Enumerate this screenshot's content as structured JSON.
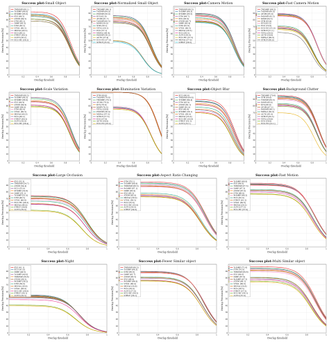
{
  "chart_data": [
    {
      "type": "line",
      "title": "Success plot-Small Object",
      "ylabel": "Overlap Precision [%]",
      "xlabel": "Overlap threshold",
      "xlim": [
        0,
        1
      ],
      "ylim": [
        0,
        100
      ],
      "xticks": [
        "0",
        "0.2",
        "0.4",
        "0.6",
        "0.8",
        "1"
      ],
      "yticks": [
        "0",
        "10",
        "20",
        "30",
        "40",
        "50",
        "60",
        "70",
        "80",
        "90"
      ],
      "series": [
        {
          "name": "TMDiMP [68.1]"
        },
        {
          "name": "TrDiMP [66.0]"
        },
        {
          "name": "PrDiMP [65.0]"
        },
        {
          "name": "KYS [64.5]"
        },
        {
          "name": "ATOM [64.5]"
        },
        {
          "name": "STM [63.2]"
        },
        {
          "name": "DiMP [63.3]"
        },
        {
          "name": "STM [63.2]"
        },
        {
          "name": "VITAL [60.2]"
        },
        {
          "name": "MDNet [60.2]"
        },
        {
          "name": "ECO [60.2]"
        },
        {
          "name": "STRCF [60.2]"
        },
        {
          "name": "AUTO [58.2]"
        },
        {
          "name": "ECO-HC [58.2]"
        }
      ]
    },
    {
      "type": "line",
      "title": "Success plot-Normalized Small Object",
      "ylabel": "Overlap Precision [%]",
      "xlabel": "Overlap threshold",
      "xlim": [
        0,
        1
      ],
      "ylim": [
        0,
        100
      ],
      "xticks": [
        "0",
        "0.2",
        "0.4",
        "0.6",
        "0.8",
        "1"
      ],
      "yticks": [
        "0",
        "10",
        "20",
        "30",
        "40",
        "50",
        "60",
        "70",
        "80",
        "90"
      ],
      "series": [
        {
          "name": "TMDiMP [64.1]"
        },
        {
          "name": "TrDiMP [64.0]"
        },
        {
          "name": "PrDiMP [63.0]"
        },
        {
          "name": "KYS [62.0]"
        },
        {
          "name": "ATOM [61.7]"
        },
        {
          "name": "TrDiMP [60.5]"
        },
        {
          "name": "DiMP [59.0]"
        },
        {
          "name": "STM [58.1]"
        },
        {
          "name": "VITAL [58.1]"
        },
        {
          "name": "ECO [57.1]"
        },
        {
          "name": "MDNet [56.4]"
        },
        {
          "name": "PrDiMP [56.2]"
        },
        {
          "name": "AUTO [37.4]"
        },
        {
          "name": "ECO-HC [37.0]"
        },
        {
          "name": "STRCF [35.8]"
        }
      ]
    },
    {
      "type": "line",
      "title": "Success plot-Camera Motion",
      "ylabel": "Overlap Precision [%]",
      "xlabel": "Overlap threshold",
      "xlim": [
        0,
        1
      ],
      "ylim": [
        0,
        100
      ],
      "xticks": [
        "0",
        "0.2",
        "0.4",
        "0.6",
        "0.8",
        "1"
      ],
      "yticks": [
        "0",
        "10",
        "20",
        "30",
        "40",
        "50",
        "60",
        "70",
        "80",
        "90"
      ],
      "series": [
        {
          "name": "TMDiMP [66.5]"
        },
        {
          "name": "TrDiMP [66.3]"
        },
        {
          "name": "PrDiMP [65.5]"
        },
        {
          "name": "STM [64.7]"
        },
        {
          "name": "KYS [63.9]"
        },
        {
          "name": "ATOM [63.7]"
        },
        {
          "name": "DiMP [63.4]"
        },
        {
          "name": "STM [61.8]"
        },
        {
          "name": "VITAL [60.5]"
        },
        {
          "name": "MDNet [58.5]"
        },
        {
          "name": "ECO [58.5]"
        },
        {
          "name": "AUTO [58.0]"
        },
        {
          "name": "ECO-HC [57.5]"
        },
        {
          "name": "MDNet [57.0]"
        },
        {
          "name": "STRCF [56.5]"
        }
      ]
    },
    {
      "type": "line",
      "title": "Success plot-Fast Camera Motion",
      "ylabel": "Overlap Precision [%]",
      "xlabel": "Overlap threshold",
      "xlim": [
        0,
        1
      ],
      "ylim": [
        0,
        100
      ],
      "xticks": [
        "0",
        "0.2",
        "0.4",
        "0.6",
        "0.8",
        "1"
      ],
      "yticks": [
        "0",
        "10",
        "20",
        "30",
        "40",
        "50",
        "60",
        "70",
        "80",
        "90"
      ],
      "series": [
        {
          "name": "TMDiMP [66.2]"
        },
        {
          "name": "TrDiMP [66.0]"
        },
        {
          "name": "ATOM [65.0]"
        },
        {
          "name": "PrDiMP [65.5]"
        },
        {
          "name": "DiMP [64.5]"
        },
        {
          "name": "STM [63.9]"
        },
        {
          "name": "KYS [63.5]"
        },
        {
          "name": "ECO [53.0]"
        },
        {
          "name": "ECO-HC [52.0]"
        },
        {
          "name": "STRCF [51.1]"
        },
        {
          "name": "VITAL [50.5]"
        },
        {
          "name": "AUTO [50.0]"
        },
        {
          "name": "MDNet [49.0]"
        },
        {
          "name": "STRCF [46.0]"
        }
      ]
    },
    {
      "type": "line",
      "title": "Success plot-Scale Variation",
      "ylabel": "Overlap Precision [%]",
      "xlabel": "Overlap threshold",
      "xlim": [
        0,
        1
      ],
      "ylim": [
        0,
        100
      ],
      "xticks": [
        "0",
        "0.2",
        "0.4",
        "0.6",
        "0.8",
        "1"
      ],
      "yticks": [
        "0",
        "10",
        "20",
        "30",
        "40",
        "50",
        "60",
        "70",
        "80",
        "90"
      ],
      "series": [
        {
          "name": "TMDiMP [68.5]"
        },
        {
          "name": "TrDiMP [68.3]"
        },
        {
          "name": "PrDiMP [66.9]"
        },
        {
          "name": "KYS [64.9]"
        },
        {
          "name": "ATOM [64.9]"
        },
        {
          "name": "DiMP [64.0]"
        },
        {
          "name": "STM [63.4]"
        },
        {
          "name": "VITAL [60.3]"
        },
        {
          "name": "MDNet [60.3]"
        },
        {
          "name": "ECO [60.2]"
        },
        {
          "name": "STRCF [60.2]"
        },
        {
          "name": "AUTO [59.0]"
        },
        {
          "name": "ECO-HC [58.4]"
        }
      ]
    },
    {
      "type": "line",
      "title": "Success plot-Illumination Variation",
      "ylabel": "Overlap Precision [%]",
      "xlabel": "Overlap threshold",
      "xlim": [
        0,
        1
      ],
      "ylim": [
        0,
        100
      ],
      "xticks": [
        "0",
        "0.2",
        "0.4",
        "0.6",
        "0.8",
        "1"
      ],
      "yticks": [
        "0",
        "10",
        "20",
        "30",
        "40",
        "50",
        "60",
        "70",
        "80",
        "90"
      ],
      "series": [
        {
          "name": "STM [80.8]"
        },
        {
          "name": "TrDiMP [79.8]"
        },
        {
          "name": "TMDiMP [79.1]"
        },
        {
          "name": "ATOM [79.0]"
        },
        {
          "name": "KYS [78.0]"
        },
        {
          "name": "DiMP [76.3]"
        },
        {
          "name": "VITAL [58.8]"
        },
        {
          "name": "PrDiMP [58.0]"
        },
        {
          "name": "MDNet [57.5]"
        },
        {
          "name": "STRCF [57.5]"
        },
        {
          "name": "ECO [57.0]"
        },
        {
          "name": "AUTO [56.0]"
        },
        {
          "name": "ECO-HC [56.0]"
        }
      ]
    },
    {
      "type": "line",
      "title": "Success plot-Object Blur",
      "ylabel": "Overlap Precision [%]",
      "xlabel": "Overlap threshold",
      "xlim": [
        0,
        1
      ],
      "ylim": [
        0,
        100
      ],
      "xticks": [
        "0",
        "0.2",
        "0.4",
        "0.6",
        "0.8",
        "1"
      ],
      "yticks": [
        "0",
        "10",
        "20",
        "30",
        "40",
        "50",
        "60",
        "70",
        "80",
        "90"
      ],
      "series": [
        {
          "name": "ECO [66.6]"
        },
        {
          "name": "TMDiMP [64.8]"
        },
        {
          "name": "TrDiMP [64.4]"
        },
        {
          "name": "STM [63.9]"
        },
        {
          "name": "ATOM [62.1]"
        },
        {
          "name": "DiMP [61.0]"
        },
        {
          "name": "KYS [60.4]"
        },
        {
          "name": "PrDiMP [58.1]"
        },
        {
          "name": "VITAL [56.0]"
        },
        {
          "name": "MDNet [55.0]"
        },
        {
          "name": "ECO-HC [53.0]"
        },
        {
          "name": "STRCF [52.1]"
        },
        {
          "name": "AUTO [52.1]"
        }
      ]
    },
    {
      "type": "line",
      "title": "Success plot-Background Clutter",
      "ylabel": "Overlap Precision [%]",
      "xlabel": "Overlap threshold",
      "xlim": [
        0,
        1
      ],
      "ylim": [
        0,
        100
      ],
      "xticks": [
        "0",
        "0.2",
        "0.4",
        "0.6",
        "0.8",
        "1"
      ],
      "yticks": [
        "0",
        "10",
        "20",
        "30",
        "40",
        "50",
        "60",
        "70",
        "80",
        "90"
      ],
      "series": [
        {
          "name": "TMDiMP [70.6]"
        },
        {
          "name": "STM [69.8]"
        },
        {
          "name": "TrDiMP [69.3]"
        },
        {
          "name": "DiMP [68.6]"
        },
        {
          "name": "KYS [68.0]"
        },
        {
          "name": "ATOM [67.1]"
        },
        {
          "name": "PrDiMP [66.1]"
        },
        {
          "name": "MDNet [62.0]"
        },
        {
          "name": "AUTO [61.0]"
        },
        {
          "name": "STRCF [60.5]"
        },
        {
          "name": "VITAL [59.8]"
        },
        {
          "name": "ECO [59.0]"
        },
        {
          "name": "ECO-HC [52.1]"
        }
      ]
    },
    {
      "type": "line",
      "title": "Success plot-Large Occlusion",
      "ylabel": "Overlap Precision [%]",
      "xlabel": "Overlap threshold",
      "xlim": [
        0,
        1
      ],
      "ylim": [
        0,
        100
      ],
      "xticks": [
        "0",
        "0.2",
        "0.4",
        "0.6",
        "0.8",
        "1"
      ],
      "yticks": [
        "0",
        "10",
        "20",
        "30",
        "40",
        "50",
        "60",
        "70",
        "80",
        "90"
      ],
      "series": [
        {
          "name": "KYS [55.3]"
        },
        {
          "name": "TMDiMP [54.7]"
        },
        {
          "name": "ATOM [54.4]"
        },
        {
          "name": "ECO [53.0]"
        },
        {
          "name": "PrDiMP [52.8]"
        },
        {
          "name": "DiMP [52.1]"
        },
        {
          "name": "TrDiMP [51.0]"
        },
        {
          "name": "STM [49.5]"
        },
        {
          "name": "VITAL [46.8]"
        },
        {
          "name": "ECO-HC [46.3]"
        },
        {
          "name": "MDNet [46.0]"
        },
        {
          "name": "STRCF [39.8]"
        },
        {
          "name": "AUTO [39.0]"
        }
      ]
    },
    {
      "type": "line",
      "title": "Success plot-Aspect Ratio Changing",
      "ylabel": "Overlap Precision [%]",
      "xlabel": "Overlap threshold",
      "xlim": [
        0,
        1
      ],
      "ylim": [
        0,
        100
      ],
      "xticks": [
        "0",
        "0.2",
        "0.4",
        "0.6",
        "0.8",
        "1"
      ],
      "yticks": [
        "0",
        "10",
        "20",
        "30",
        "40",
        "50",
        "60",
        "70",
        "80",
        "90"
      ],
      "series": [
        {
          "name": "STM [70.1]"
        },
        {
          "name": "TrDiMP [68.9]"
        },
        {
          "name": "TMDiMP [68.5]"
        },
        {
          "name": "PrDiMP [67.1]"
        },
        {
          "name": "DiMP [65.9]"
        },
        {
          "name": "KYS [65.5]"
        },
        {
          "name": "ATOM [65.0]"
        },
        {
          "name": "MDNet [58.0]"
        },
        {
          "name": "VITAL [56.5]"
        },
        {
          "name": "ECO [55.6]"
        },
        {
          "name": "ECO-HC [55.0]"
        },
        {
          "name": "AUTO [54.3]"
        },
        {
          "name": "STRCF [54.0]"
        }
      ]
    },
    {
      "type": "line",
      "title": "Success plot-Fast Motion",
      "ylabel": "Overlap Precision [%]",
      "xlabel": "Overlap threshold",
      "xlim": [
        0,
        1
      ],
      "ylim": [
        0,
        100
      ],
      "xticks": [
        "0",
        "0.2",
        "0.4",
        "0.6",
        "0.8",
        "1"
      ],
      "yticks": [
        "0",
        "10",
        "20",
        "30",
        "40",
        "50",
        "60",
        "70",
        "80",
        "90"
      ],
      "series": [
        {
          "name": "TrDiMP [68.8]"
        },
        {
          "name": "KYS [68.0]"
        },
        {
          "name": "TMDiMP [67.5]"
        },
        {
          "name": "DiMP [67.3]"
        },
        {
          "name": "ATOM [67.0]"
        },
        {
          "name": "STM [66.8]"
        },
        {
          "name": "PrDiMP [66.5]"
        },
        {
          "name": "ECO [62.0]"
        },
        {
          "name": "STRCF [61.2]"
        },
        {
          "name": "VITAL [60.6]"
        },
        {
          "name": "MDNet [59.2]"
        },
        {
          "name": "AUTO [57.5]"
        },
        {
          "name": "ECO-HC [57.0]"
        }
      ]
    },
    {
      "type": "line",
      "title": "Success plot-Night",
      "ylabel": "Overlap Precision [%]",
      "xlabel": "Overlap threshold",
      "xlim": [
        0,
        1
      ],
      "ylim": [
        0,
        100
      ],
      "xticks": [
        "0",
        "0.2",
        "0.4",
        "0.6",
        "0.8",
        "1"
      ],
      "yticks": [
        "0",
        "10",
        "20",
        "30",
        "40",
        "50",
        "60",
        "70",
        "80",
        "90"
      ],
      "series": [
        {
          "name": "KYS [41.1]"
        },
        {
          "name": "ECO [41.0]"
        },
        {
          "name": "DiMP [40.5]"
        },
        {
          "name": "TrDiMP [40.0]"
        },
        {
          "name": "TMDiMP [39.8]"
        },
        {
          "name": "ATOM [39.5]"
        },
        {
          "name": "PrDiMP [39.2]"
        },
        {
          "name": "STM [39.0]"
        },
        {
          "name": "MDNet [38.6]"
        },
        {
          "name": "VITAL [38.0]"
        },
        {
          "name": "ECO-HC [36.0]"
        },
        {
          "name": "STRCF [30.1]"
        },
        {
          "name": "AUTO [29.3]"
        }
      ]
    },
    {
      "type": "line",
      "title": "Success plot-Fewer Similar object",
      "ylabel": "Overlap Precision [%]",
      "xlabel": "Overlap threshold",
      "xlim": [
        0,
        1
      ],
      "ylim": [
        0,
        100
      ],
      "xticks": [
        "0",
        "0.2",
        "0.4",
        "0.6",
        "0.8",
        "1"
      ],
      "yticks": [
        "0",
        "10",
        "20",
        "30",
        "40",
        "50",
        "60",
        "70",
        "80",
        "90"
      ],
      "series": [
        {
          "name": "TMDiMP [66.5]"
        },
        {
          "name": "TrDiMP [66.3]"
        },
        {
          "name": "STM [65.8]"
        },
        {
          "name": "DiMP [65.7]"
        },
        {
          "name": "ATOM [65.5]"
        },
        {
          "name": "KYS [64.9]"
        },
        {
          "name": "PrDiMP [64.8]"
        },
        {
          "name": "VITAL [60.4]"
        },
        {
          "name": "MDNet [59.8]"
        },
        {
          "name": "ECO [59.0]"
        },
        {
          "name": "AUTO [57.0]"
        },
        {
          "name": "ECO-HC [56.5]"
        },
        {
          "name": "STRCF [56.1]"
        }
      ]
    },
    {
      "type": "line",
      "title": "Success plot-Multi Similar object",
      "ylabel": "Overlap Precision [%]",
      "xlabel": "Overlap threshold",
      "xlim": [
        0,
        1
      ],
      "ylim": [
        0,
        100
      ],
      "xticks": [
        "0",
        "0.2",
        "0.4",
        "0.6",
        "0.8",
        "1"
      ],
      "yticks": [
        "0",
        "10",
        "20",
        "30",
        "40",
        "50",
        "60",
        "70",
        "80",
        "90"
      ],
      "series": [
        {
          "name": "TrDiMP [71.6]"
        },
        {
          "name": "STM [70.0]"
        },
        {
          "name": "TMDiMP [69.8]"
        },
        {
          "name": "KYS [69.0]"
        },
        {
          "name": "DiMP [67.9]"
        },
        {
          "name": "PrDiMP [67.5]"
        },
        {
          "name": "ATOM [66.1]"
        },
        {
          "name": "VITAL [60.0]"
        },
        {
          "name": "MDNet [59.6]"
        },
        {
          "name": "ECO [58.5]"
        },
        {
          "name": "STRCF [57.5]"
        },
        {
          "name": "ECO-HC [56.1]"
        },
        {
          "name": "AUTO [55.0]"
        }
      ]
    }
  ],
  "palette": [
    "#e41a1c",
    "#377eb8",
    "#4daf4a",
    "#984ea3",
    "#ff7f00",
    "#a65628",
    "#f781bf",
    "#1b9e77",
    "#d95f02",
    "#7570b3",
    "#e7298a",
    "#66a61e",
    "#e6ab02",
    "#666666",
    "#17becf"
  ]
}
